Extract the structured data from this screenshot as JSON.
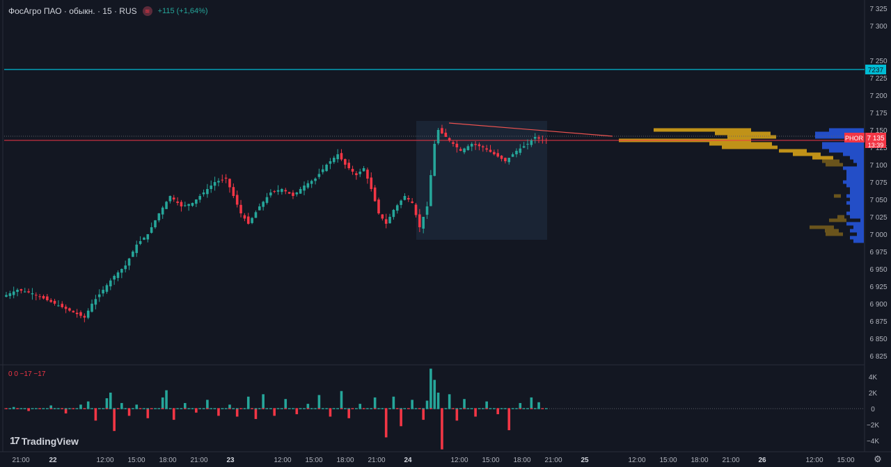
{
  "header": {
    "title": "ФосАгро ПАО · обыкн. · 15 · RUS",
    "change": "+115 (+1,64%)",
    "indicator_icon": "volume-icon"
  },
  "indicator_label": "0  0  −17  −17",
  "logo_text": "TradingView",
  "settings_icon": "gear-icon",
  "colors": {
    "background": "#131722",
    "up": "#26a69a",
    "down": "#f23645",
    "level_line": "#00bcd4",
    "price_line": "#f23645",
    "vp_up": "#2962ff",
    "vp_down": "#d4a017"
  },
  "chart_data": {
    "type": "candlestick",
    "symbol": "PHOR",
    "timeframe": "15",
    "y_axis": {
      "ticks": [
        6825,
        6850,
        6875,
        6900,
        6925,
        6950,
        6975,
        7000,
        7025,
        7050,
        7075,
        7100,
        7125,
        7150,
        7175,
        7200,
        7225,
        7250,
        7300,
        7325
      ],
      "range": [
        6808,
        7330
      ]
    },
    "x_axis": {
      "ticks": [
        "21:00",
        "22",
        "12:00",
        "15:00",
        "18:00",
        "21:00",
        "23",
        "12:00",
        "15:00",
        "18:00",
        "21:00",
        "24",
        "12:00",
        "15:00",
        "18:00",
        "21:00",
        "25",
        "12:00",
        "15:00",
        "18:00",
        "21:00",
        "26",
        "12:00",
        "15:00"
      ]
    },
    "levels": [
      {
        "value": 7237,
        "label": "7237",
        "color": "#00bcd4"
      }
    ],
    "current_price": {
      "label": "PHOR",
      "value": "7135",
      "countdown": "13:39"
    },
    "price_path": [
      [
        0,
        6910
      ],
      [
        4,
        6920
      ],
      [
        8,
        6915
      ],
      [
        12,
        6905
      ],
      [
        16,
        6895
      ],
      [
        20,
        6885
      ],
      [
        22,
        6880
      ],
      [
        24,
        6900
      ],
      [
        27,
        6920
      ],
      [
        30,
        6940
      ],
      [
        33,
        6955
      ],
      [
        36,
        6985
      ],
      [
        39,
        7000
      ],
      [
        42,
        7030
      ],
      [
        45,
        7055
      ],
      [
        48,
        7040
      ],
      [
        51,
        7045
      ],
      [
        54,
        7060
      ],
      [
        57,
        7075
      ],
      [
        60,
        7080
      ],
      [
        62,
        7055
      ],
      [
        64,
        7030
      ],
      [
        66,
        7015
      ],
      [
        69,
        7040
      ],
      [
        72,
        7060
      ],
      [
        75,
        7065
      ],
      [
        78,
        7055
      ],
      [
        81,
        7070
      ],
      [
        84,
        7080
      ],
      [
        87,
        7100
      ],
      [
        90,
        7115
      ],
      [
        92,
        7100
      ],
      [
        95,
        7085
      ],
      [
        97,
        7095
      ],
      [
        99,
        7065
      ],
      [
        101,
        7030
      ],
      [
        103,
        7015
      ],
      [
        105,
        7035
      ],
      [
        108,
        7055
      ],
      [
        110,
        7045
      ],
      [
        112,
        7010
      ],
      [
        114,
        7040
      ],
      [
        116,
        7130
      ],
      [
        117,
        7150
      ],
      [
        120,
        7135
      ],
      [
        123,
        7120
      ],
      [
        126,
        7130
      ],
      [
        129,
        7125
      ],
      [
        132,
        7115
      ],
      [
        135,
        7105
      ],
      [
        138,
        7120
      ],
      [
        141,
        7130
      ],
      [
        143,
        7140
      ],
      [
        145,
        7135
      ]
    ],
    "volume": {
      "ticks": [
        "4K",
        "2K",
        "0",
        "−2K",
        "−4K"
      ],
      "range": [
        -5000,
        5000
      ],
      "bars": [
        [
          2,
          200
        ],
        [
          6,
          -300
        ],
        [
          12,
          400
        ],
        [
          16,
          -600
        ],
        [
          20,
          500
        ],
        [
          22,
          900
        ],
        [
          24,
          -1500
        ],
        [
          27,
          1300
        ],
        [
          28,
          2000
        ],
        [
          29,
          -2800
        ],
        [
          31,
          700
        ],
        [
          33,
          -900
        ],
        [
          35,
          500
        ],
        [
          38,
          -1200
        ],
        [
          42,
          1400
        ],
        [
          43,
          2300
        ],
        [
          45,
          -1400
        ],
        [
          48,
          700
        ],
        [
          51,
          -500
        ],
        [
          54,
          1100
        ],
        [
          57,
          -900
        ],
        [
          60,
          500
        ],
        [
          62,
          -1000
        ],
        [
          65,
          1500
        ],
        [
          67,
          -1300
        ],
        [
          69,
          1800
        ],
        [
          72,
          -900
        ],
        [
          75,
          1200
        ],
        [
          78,
          -700
        ],
        [
          81,
          600
        ],
        [
          84,
          1700
        ],
        [
          87,
          -1000
        ],
        [
          90,
          2200
        ],
        [
          92,
          -1200
        ],
        [
          95,
          600
        ],
        [
          99,
          1400
        ],
        [
          102,
          -3600
        ],
        [
          104,
          1500
        ],
        [
          106,
          -2200
        ],
        [
          109,
          1100
        ],
        [
          112,
          -1400
        ],
        [
          113,
          1000
        ],
        [
          114,
          5000
        ],
        [
          115,
          3600
        ],
        [
          116,
          2000
        ],
        [
          117,
          -5100
        ],
        [
          119,
          1800
        ],
        [
          121,
          -1500
        ],
        [
          123,
          1200
        ],
        [
          126,
          -1000
        ],
        [
          129,
          900
        ],
        [
          132,
          -700
        ],
        [
          135,
          -2700
        ],
        [
          138,
          700
        ],
        [
          141,
          1400
        ],
        [
          143,
          800
        ]
      ]
    },
    "volume_profile": [
      [
        7150,
        190,
        140
      ],
      [
        7145,
        150,
        80
      ],
      [
        7140,
        140,
        70
      ],
      [
        7135,
        200,
        190
      ],
      [
        7130,
        150,
        90
      ],
      [
        7125,
        140,
        80
      ],
      [
        7120,
        90,
        40
      ],
      [
        7115,
        70,
        40
      ],
      [
        7110,
        50,
        30
      ],
      [
        7105,
        40,
        25
      ],
      [
        7100,
        35,
        25
      ],
      [
        7095,
        30,
        0
      ],
      [
        7090,
        25,
        0
      ],
      [
        7085,
        25,
        0
      ],
      [
        7080,
        25,
        0
      ],
      [
        7075,
        30,
        0
      ],
      [
        7070,
        25,
        0
      ],
      [
        7065,
        20,
        0
      ],
      [
        7060,
        20,
        0
      ],
      [
        7055,
        35,
        10
      ],
      [
        7050,
        20,
        0
      ],
      [
        7045,
        25,
        0
      ],
      [
        7040,
        20,
        0
      ],
      [
        7035,
        20,
        0
      ],
      [
        7030,
        25,
        0
      ],
      [
        7025,
        30,
        10
      ],
      [
        7020,
        30,
        25
      ],
      [
        7015,
        25,
        0
      ],
      [
        7010,
        50,
        35
      ],
      [
        7005,
        40,
        20
      ],
      [
        7000,
        35,
        25
      ],
      [
        6995,
        20,
        0
      ],
      [
        6990,
        15,
        0
      ]
    ]
  }
}
